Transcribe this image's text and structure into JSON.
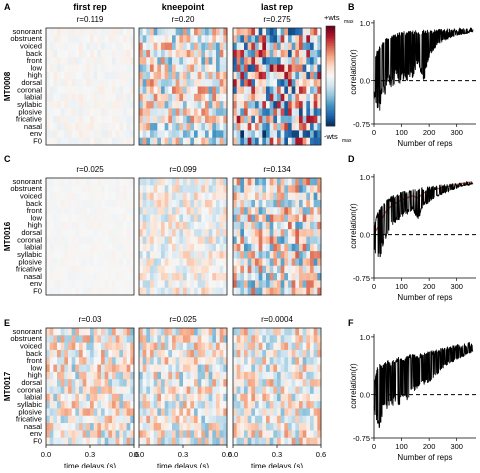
{
  "panel_letters": [
    "A",
    "B",
    "C",
    "D",
    "E",
    "F"
  ],
  "column_titles": [
    "first rep",
    "kneepoint",
    "last rep"
  ],
  "features": [
    "sonorant",
    "obstruent",
    "voiced",
    "back",
    "front",
    "low",
    "high",
    "dorsal",
    "coronal",
    "labial",
    "syllabic",
    "plosive",
    "fricative",
    "nasal",
    "env",
    "F0"
  ],
  "heatmap_rows": [
    {
      "subject": "MT0008",
      "r_values": [
        "r=0.119",
        "r=0.20",
        "r=0.275"
      ],
      "intensity": [
        0.08,
        0.55,
        0.9
      ]
    },
    {
      "subject": "MT0016",
      "r_values": [
        "r=0.025",
        "r=0.099",
        "r=0.134"
      ],
      "intensity": [
        0.04,
        0.3,
        0.6
      ]
    },
    {
      "subject": "MT0017",
      "r_values": [
        "r=0.03",
        "r=0.025",
        "r=0.0004"
      ],
      "intensity": [
        0.45,
        0.45,
        0.45
      ]
    }
  ],
  "x_axis": {
    "label": "time delays (s)",
    "ticks": [
      "0.0",
      "0.3",
      "0.6"
    ]
  },
  "colorbar": {
    "top_label": "+wts",
    "top_sub": "max",
    "bottom_label": "-wts",
    "bottom_sub": "max",
    "colors": [
      "#053061",
      "#2166ac",
      "#4393c3",
      "#92c5de",
      "#d1e5f0",
      "#f7f7f7",
      "#fddbc7",
      "#f4a582",
      "#d6604d",
      "#b2182b",
      "#67001f"
    ]
  },
  "line_panels": {
    "ylabel": "correlation(r)",
    "xlabel": "Number of reps",
    "yticks": [
      "1.0",
      "0.0",
      "-0.75"
    ],
    "xticks": [
      "0",
      "100",
      "200",
      "300"
    ]
  },
  "chart_data": [
    {
      "type": "line",
      "panel": "B",
      "xlabel": "Number of reps",
      "ylabel": "correlation(r)",
      "xlim": [
        0,
        370
      ],
      "ylim": [
        -0.75,
        1.05
      ],
      "reference_line": 0.0,
      "x": [
        0,
        10,
        20,
        30,
        40,
        50,
        60,
        70,
        80,
        90,
        100,
        120,
        140,
        160,
        180,
        200,
        220,
        240,
        260,
        280,
        300,
        320,
        340,
        360
      ],
      "upper": [
        0.35,
        0.5,
        0.6,
        0.65,
        0.72,
        0.75,
        0.78,
        0.8,
        0.82,
        0.83,
        0.85,
        0.86,
        0.87,
        0.87,
        0.88,
        0.88,
        0.89,
        0.89,
        0.9,
        0.9,
        0.91,
        0.91,
        0.91,
        0.92
      ],
      "lower": [
        -0.3,
        -0.45,
        -0.55,
        -0.2,
        -0.3,
        0.0,
        -0.1,
        -0.15,
        0.1,
        -0.1,
        0.0,
        0.0,
        0.05,
        0.3,
        -0.05,
        0.4,
        0.55,
        0.65,
        0.7,
        0.75,
        0.78,
        0.8,
        0.82,
        0.85
      ]
    },
    {
      "type": "line",
      "panel": "D",
      "xlabel": "Number of reps",
      "ylabel": "correlation(r)",
      "xlim": [
        0,
        370
      ],
      "ylim": [
        -0.75,
        1.05
      ],
      "reference_line": 0.0,
      "x": [
        0,
        10,
        20,
        30,
        40,
        50,
        60,
        70,
        80,
        90,
        100,
        120,
        140,
        160,
        180,
        200,
        220,
        240,
        260,
        280,
        300,
        320,
        340,
        360
      ],
      "upper": [
        0.15,
        0.35,
        0.45,
        0.52,
        0.58,
        0.62,
        0.65,
        0.68,
        0.7,
        0.72,
        0.74,
        0.76,
        0.78,
        0.8,
        0.82,
        0.83,
        0.85,
        0.86,
        0.87,
        0.88,
        0.9,
        0.91,
        0.92,
        0.93
      ],
      "lower": [
        -0.3,
        -0.5,
        -0.45,
        -0.25,
        -0.1,
        0.0,
        0.1,
        0.15,
        0.2,
        0.25,
        0.28,
        0.35,
        0.42,
        0.25,
        0.5,
        0.55,
        0.62,
        0.68,
        0.72,
        0.76,
        0.8,
        0.84,
        0.86,
        0.88
      ]
    },
    {
      "type": "line",
      "panel": "F",
      "xlabel": "Number of reps",
      "ylabel": "correlation(r)",
      "xlim": [
        0,
        370
      ],
      "ylim": [
        -0.75,
        1.05
      ],
      "reference_line": 0.0,
      "x": [
        0,
        10,
        20,
        30,
        40,
        50,
        60,
        70,
        80,
        90,
        100,
        120,
        140,
        160,
        180,
        200,
        220,
        240,
        260,
        280,
        300,
        320,
        340,
        360
      ],
      "upper": [
        0.2,
        0.45,
        0.55,
        0.5,
        0.55,
        0.6,
        0.55,
        0.6,
        0.62,
        0.65,
        0.62,
        0.68,
        0.7,
        0.7,
        0.72,
        0.75,
        0.78,
        0.8,
        0.82,
        0.85,
        0.87,
        0.88,
        0.9,
        0.92
      ],
      "lower": [
        -0.3,
        -0.5,
        -0.7,
        -0.35,
        -0.2,
        -0.3,
        -0.15,
        -0.2,
        -0.1,
        -0.25,
        0.0,
        -0.1,
        0.05,
        0.1,
        0.15,
        0.2,
        0.3,
        0.4,
        0.5,
        0.55,
        0.6,
        0.65,
        0.7,
        0.75
      ]
    }
  ]
}
